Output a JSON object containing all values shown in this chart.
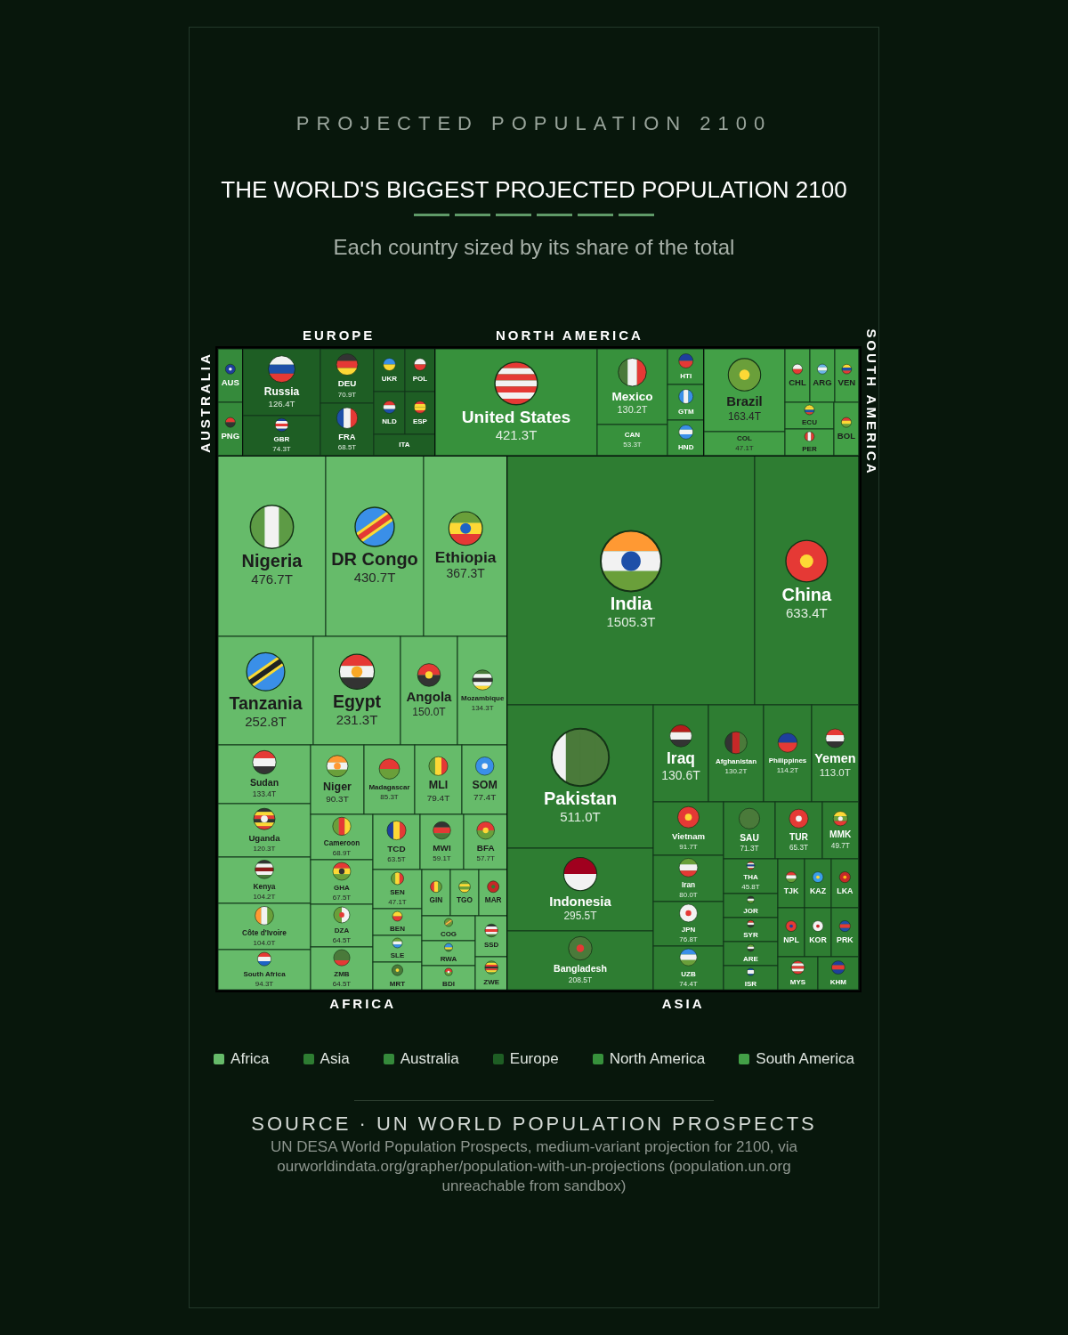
{
  "chart_data": {
    "type": "other",
    "title": "THE WORLD'S BIGGEST PROJECTED POPULATION 2100",
    "subtitle": "Each country sized by its share of the total",
    "annotations": [
      "PROJECTED POPULATION 2100",
      "AFRICA",
      "ASIA",
      "AUSTRALIA",
      "EUROPE",
      "NORTH AMERICA",
      "SOUTH AMERICA",
      "SOURCE · UN WORLD POPULATION PROSPECTS",
      "UN DESA World Population Prospects, medium-variant projection for 2100, via ourworldindata.org/grapher/population-with-un-projections (population.un.org unreachable from sandbox)"
    ],
    "legend": "bottom",
    "categories": [
      "Nigeria",
      "DR Congo",
      "Ethiopia",
      "Tanzania",
      "Egypt",
      "Angola",
      "Mozambique",
      "Sudan",
      "Uganda",
      "Kenya",
      "Côte d'Ivoire",
      "South Africa",
      "Niger",
      "Madagascar",
      "MLI",
      "SOM",
      "Cameroon",
      "GHA",
      "DZA",
      "ZMB",
      "TCD",
      "MWI",
      "BFA",
      "SEN",
      "BEN",
      "SLE",
      "MRT",
      "GIN",
      "TGO",
      "MAR",
      "COG",
      "RWA",
      "BDI",
      "SSD",
      "ZWE",
      "India",
      "China",
      "Pakistan",
      "Indonesia",
      "Bangladesh",
      "Iraq",
      "Afghanistan",
      "Philippines",
      "Yemen",
      "Vietnam",
      "Iran",
      "JPN",
      "UZB",
      "SAU",
      "TUR",
      "MMK",
      "THA",
      "JOR",
      "SYR",
      "ARE",
      "ISR",
      "TJK",
      "KAZ",
      "LKA",
      "NPL",
      "KOR",
      "PRK",
      "MYS",
      "KHM",
      "AUS",
      "PNG",
      "Russia",
      "GBR",
      "DEU",
      "FRA",
      "UKR",
      "POL",
      "NLD",
      "ESP",
      "ITA",
      "United States",
      "Mexico",
      "CAN",
      "HTI",
      "GTM",
      "HND",
      "Brazil",
      "COL",
      "CHL",
      "ARG",
      "VEN",
      "ECU",
      "PER",
      "BOL"
    ],
    "colors": [
      "#66bb6a",
      "#66bb6a",
      "#66bb6a",
      "#66bb6a",
      "#66bb6a",
      "#66bb6a",
      "#66bb6a",
      "#66bb6a",
      "#66bb6a",
      "#66bb6a",
      "#66bb6a",
      "#66bb6a",
      "#66bb6a",
      "#66bb6a",
      "#66bb6a",
      "#66bb6a",
      "#66bb6a",
      "#66bb6a",
      "#66bb6a",
      "#66bb6a",
      "#66bb6a",
      "#66bb6a",
      "#66bb6a",
      "#66bb6a",
      "#66bb6a",
      "#66bb6a",
      "#66bb6a",
      "#66bb6a",
      "#66bb6a",
      "#66bb6a",
      "#66bb6a",
      "#66bb6a",
      "#66bb6a",
      "#66bb6a",
      "#66bb6a",
      "#2e7d32",
      "#2e7d32",
      "#2e7d32",
      "#2e7d32",
      "#2e7d32",
      "#2e7d32",
      "#2e7d32",
      "#2e7d32",
      "#2e7d32",
      "#2e7d32",
      "#2e7d32",
      "#2e7d32",
      "#2e7d32",
      "#2e7d32",
      "#2e7d32",
      "#2e7d32",
      "#2e7d32",
      "#2e7d32",
      "#2e7d32",
      "#2e7d32",
      "#2e7d32",
      "#2e7d32",
      "#2e7d32",
      "#2e7d32",
      "#2e7d32",
      "#2e7d32",
      "#2e7d32",
      "#2e7d32",
      "#2e7d32",
      "#358a3b",
      "#358a3b",
      "#1e5e24",
      "#1e5e24",
      "#1e5e24",
      "#1e5e24",
      "#1e5e24",
      "#1e5e24",
      "#1e5e24",
      "#1e5e24",
      "#1e5e24",
      "#37913c",
      "#37913c",
      "#37913c",
      "#37913c",
      "#37913c",
      "#37913c",
      "#43a047",
      "#43a047",
      "#43a047",
      "#43a047",
      "#43a047",
      "#43a047",
      "#43a047",
      "#43a047"
    ],
    "series": [
      {
        "name": "Africa",
        "color": "#66bb6a",
        "values": [
          476.7,
          430.7,
          367.3,
          252.8,
          231.3,
          150.0,
          134.3,
          133.4,
          120.3,
          104.2,
          104.0,
          94.3,
          90.3,
          85.3,
          79.4,
          77.4,
          68.9,
          67.5,
          64.5,
          64.5,
          63.5,
          59.1,
          57.7,
          47.1,
          null,
          null,
          null,
          null,
          null,
          null,
          null,
          null,
          null,
          null,
          null,
          null,
          null,
          null,
          null,
          null,
          null,
          null,
          null,
          null,
          null,
          null,
          null,
          null,
          null,
          null,
          null,
          null,
          null,
          null,
          null,
          null,
          null,
          null,
          null,
          null,
          null,
          null,
          null,
          null,
          null,
          null,
          null,
          null,
          null,
          null,
          null,
          null,
          null,
          null,
          null,
          null,
          null,
          null,
          null,
          null,
          null,
          null,
          null,
          null,
          null,
          null,
          null,
          null,
          null
        ],
        "value_labels": [
          "476.7T",
          "430.7T",
          "367.3T",
          "252.8T",
          "231.3T",
          "150.0T",
          "134.3T",
          "133.4T",
          "120.3T",
          "104.2T",
          "104.0T",
          "94.3T",
          "90.3T",
          "85.3T",
          "79.4T",
          "77.4T",
          "68.9T",
          "67.5T",
          "64.5T",
          "64.5T",
          "63.5T",
          "59.1T",
          "57.7T",
          "47.1T",
          null,
          null,
          null,
          null,
          null,
          null,
          null,
          null,
          null,
          null,
          null,
          null,
          null,
          null,
          null,
          null,
          null,
          null,
          null,
          null,
          null,
          null,
          null,
          null,
          null,
          null,
          null,
          null,
          null,
          null,
          null,
          null,
          null,
          null,
          null,
          null,
          null,
          null,
          null,
          null,
          null,
          null,
          null,
          null,
          null,
          null,
          null,
          null,
          null,
          null,
          null,
          null,
          null,
          null,
          null,
          null,
          null,
          null,
          null,
          null,
          null,
          null,
          null,
          null,
          null
        ]
      },
      {
        "name": "Asia",
        "color": "#2e7d32",
        "values": [
          null,
          null,
          null,
          null,
          null,
          null,
          null,
          null,
          null,
          null,
          null,
          null,
          null,
          null,
          null,
          null,
          null,
          null,
          null,
          null,
          null,
          null,
          null,
          null,
          null,
          null,
          null,
          null,
          null,
          null,
          null,
          null,
          null,
          null,
          null,
          1505.3,
          633.4,
          511.0,
          295.5,
          208.5,
          130.6,
          130.2,
          114.2,
          113.0,
          91.7,
          80.0,
          76.8,
          74.4,
          71.3,
          65.3,
          49.7,
          45.8,
          null,
          null,
          null,
          null,
          null,
          null,
          null,
          null,
          null,
          null,
          null,
          null,
          null,
          null,
          null,
          null,
          null,
          null,
          null,
          null,
          null,
          null,
          null,
          null,
          null,
          null,
          null,
          null,
          null,
          null,
          null,
          null,
          null,
          null,
          null,
          null,
          null
        ],
        "value_labels": [
          null,
          null,
          null,
          null,
          null,
          null,
          null,
          null,
          null,
          null,
          null,
          null,
          null,
          null,
          null,
          null,
          null,
          null,
          null,
          null,
          null,
          null,
          null,
          null,
          null,
          null,
          null,
          null,
          null,
          null,
          null,
          null,
          null,
          null,
          null,
          "1505.3T",
          "633.4T",
          "511.0T",
          "295.5T",
          "208.5T",
          "130.6T",
          "130.2T",
          "114.2T",
          "113.0T",
          "91.7T",
          "80.0T",
          "76.8T",
          "74.4T",
          "71.3T",
          "65.3T",
          "49.7T",
          "45.8T",
          null,
          null,
          null,
          null,
          null,
          null,
          null,
          null,
          null,
          null,
          null,
          null,
          null,
          null,
          null,
          null,
          null,
          null,
          null,
          null,
          null,
          null,
          null,
          null,
          null,
          null,
          null,
          null,
          null,
          null,
          null,
          null,
          null,
          null,
          null,
          null,
          null
        ]
      },
      {
        "name": "Australia",
        "color": "#358a3b",
        "values": [
          null,
          null,
          null,
          null,
          null,
          null,
          null,
          null,
          null,
          null,
          null,
          null,
          null,
          null,
          null,
          null,
          null,
          null,
          null,
          null,
          null,
          null,
          null,
          null,
          null,
          null,
          null,
          null,
          null,
          null,
          null,
          null,
          null,
          null,
          null,
          null,
          null,
          null,
          null,
          null,
          null,
          null,
          null,
          null,
          null,
          null,
          null,
          null,
          null,
          null,
          null,
          null,
          null,
          null,
          null,
          null,
          null,
          null,
          null,
          null,
          null,
          null,
          null,
          null,
          null,
          null,
          null,
          null,
          null,
          null,
          null,
          null,
          null,
          null,
          null,
          null,
          null,
          null,
          null,
          null,
          null,
          null,
          null,
          null,
          null,
          null,
          null,
          null,
          null
        ]
      },
      {
        "name": "Europe",
        "color": "#1e5e24",
        "values": [
          null,
          null,
          null,
          null,
          null,
          null,
          null,
          null,
          null,
          null,
          null,
          null,
          null,
          null,
          null,
          null,
          null,
          null,
          null,
          null,
          null,
          null,
          null,
          null,
          null,
          null,
          null,
          null,
          null,
          null,
          null,
          null,
          null,
          null,
          null,
          null,
          null,
          null,
          null,
          null,
          null,
          null,
          null,
          null,
          null,
          null,
          null,
          null,
          null,
          null,
          null,
          null,
          null,
          null,
          null,
          null,
          null,
          null,
          null,
          null,
          null,
          null,
          null,
          null,
          null,
          null,
          126.4,
          74.3,
          70.9,
          68.5,
          null,
          null,
          null,
          null,
          null,
          null,
          null,
          null,
          null,
          null,
          null,
          null,
          null,
          null,
          null,
          null,
          null,
          null,
          null
        ],
        "value_labels": [
          null,
          null,
          null,
          null,
          null,
          null,
          null,
          null,
          null,
          null,
          null,
          null,
          null,
          null,
          null,
          null,
          null,
          null,
          null,
          null,
          null,
          null,
          null,
          null,
          null,
          null,
          null,
          null,
          null,
          null,
          null,
          null,
          null,
          null,
          null,
          null,
          null,
          null,
          null,
          null,
          null,
          null,
          null,
          null,
          null,
          null,
          null,
          null,
          null,
          null,
          null,
          null,
          null,
          null,
          null,
          null,
          null,
          null,
          null,
          null,
          null,
          null,
          null,
          null,
          null,
          null,
          "126.4T",
          "74.3T",
          "70.9T",
          "68.5T",
          null,
          null,
          null,
          null,
          null,
          null,
          null,
          null,
          null,
          null,
          null,
          null,
          null,
          null,
          null,
          null,
          null,
          null,
          null
        ]
      },
      {
        "name": "North America",
        "color": "#37913c",
        "values": [
          null,
          null,
          null,
          null,
          null,
          null,
          null,
          null,
          null,
          null,
          null,
          null,
          null,
          null,
          null,
          null,
          null,
          null,
          null,
          null,
          null,
          null,
          null,
          null,
          null,
          null,
          null,
          null,
          null,
          null,
          null,
          null,
          null,
          null,
          null,
          null,
          null,
          null,
          null,
          null,
          null,
          null,
          null,
          null,
          null,
          null,
          null,
          null,
          null,
          null,
          null,
          null,
          null,
          null,
          null,
          null,
          null,
          null,
          null,
          null,
          null,
          null,
          null,
          null,
          null,
          null,
          null,
          null,
          null,
          null,
          null,
          null,
          null,
          null,
          null,
          421.3,
          130.2,
          53.3,
          null,
          null,
          null,
          null,
          null,
          null,
          null,
          null,
          null,
          null,
          null
        ],
        "value_labels": [
          null,
          null,
          null,
          null,
          null,
          null,
          null,
          null,
          null,
          null,
          null,
          null,
          null,
          null,
          null,
          null,
          null,
          null,
          null,
          null,
          null,
          null,
          null,
          null,
          null,
          null,
          null,
          null,
          null,
          null,
          null,
          null,
          null,
          null,
          null,
          null,
          null,
          null,
          null,
          null,
          null,
          null,
          null,
          null,
          null,
          null,
          null,
          null,
          null,
          null,
          null,
          null,
          null,
          null,
          null,
          null,
          null,
          null,
          null,
          null,
          null,
          null,
          null,
          null,
          null,
          null,
          null,
          null,
          null,
          null,
          null,
          null,
          null,
          null,
          null,
          "421.3T",
          "130.2T",
          "53.3T",
          null,
          null,
          null,
          null,
          null,
          null,
          null,
          null,
          null,
          null,
          null
        ]
      },
      {
        "name": "South America",
        "color": "#43a047",
        "values": [
          null,
          null,
          null,
          null,
          null,
          null,
          null,
          null,
          null,
          null,
          null,
          null,
          null,
          null,
          null,
          null,
          null,
          null,
          null,
          null,
          null,
          null,
          null,
          null,
          null,
          null,
          null,
          null,
          null,
          null,
          null,
          null,
          null,
          null,
          null,
          null,
          null,
          null,
          null,
          null,
          null,
          null,
          null,
          null,
          null,
          null,
          null,
          null,
          null,
          null,
          null,
          null,
          null,
          null,
          null,
          null,
          null,
          null,
          null,
          null,
          null,
          null,
          null,
          null,
          null,
          null,
          null,
          null,
          null,
          null,
          null,
          null,
          null,
          null,
          null,
          null,
          null,
          null,
          null,
          null,
          null,
          163.4,
          47.1,
          null,
          null,
          null,
          null,
          null,
          null
        ],
        "value_labels": [
          null,
          null,
          null,
          null,
          null,
          null,
          null,
          null,
          null,
          null,
          null,
          null,
          null,
          null,
          null,
          null,
          null,
          null,
          null,
          null,
          null,
          null,
          null,
          null,
          null,
          null,
          null,
          null,
          null,
          null,
          null,
          null,
          null,
          null,
          null,
          null,
          null,
          null,
          null,
          null,
          null,
          null,
          null,
          null,
          null,
          null,
          null,
          null,
          null,
          null,
          null,
          null,
          null,
          null,
          null,
          null,
          null,
          null,
          null,
          null,
          null,
          null,
          null,
          null,
          null,
          null,
          null,
          null,
          null,
          null,
          null,
          null,
          null,
          null,
          null,
          null,
          null,
          null,
          null,
          null,
          null,
          "163.4T",
          "47.1T",
          null,
          null,
          null,
          null,
          null,
          null
        ]
      }
    ]
  }
}
